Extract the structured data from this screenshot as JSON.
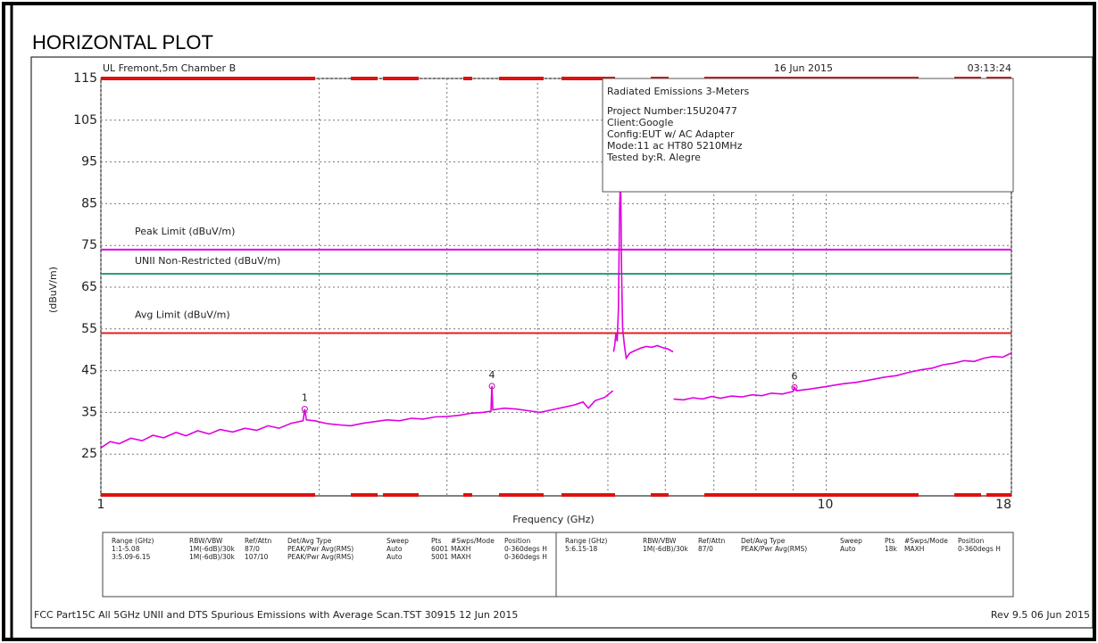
{
  "chart_data": {
    "type": "line",
    "title": "HORIZONTAL PLOT",
    "site": "UL Fremont,5m Chamber B",
    "date": "16 Jun 2015",
    "time": "03:13:24",
    "x_label": "Frequency (GHz)",
    "y_label": "(dBuV/m)",
    "x_scale": "log",
    "xlim": [
      1,
      18
    ],
    "xticks": [
      1,
      10,
      18
    ],
    "x_grid_lines": [
      2,
      3,
      4,
      5,
      6,
      7,
      8,
      9
    ],
    "ylim": [
      15,
      115
    ],
    "yticks": [
      25,
      35,
      45,
      55,
      65,
      75,
      85,
      95,
      105,
      115
    ],
    "grid": true,
    "info_box": {
      "title": "Radiated Emissions 3-Meters",
      "lines": [
        "Project Number:15U20477",
        "Client:Google",
        "Config:EUT w/ AC Adapter",
        "Mode:11 ac HT80 5210MHz",
        "Tested by:R. Alegre"
      ]
    },
    "limits": [
      {
        "name": "Peak Limit (dBuV/m)",
        "color": "#e000e0",
        "value": 74
      },
      {
        "name": "UNII Non-Restricted (dBuV/m)",
        "color": "#2e9e78",
        "value": 68.2
      },
      {
        "name": "Avg Limit (dBuV/m)",
        "color": "#e02020",
        "value": 54
      }
    ],
    "series": [
      {
        "color": "#e000e0",
        "x": [
          1.0,
          1.03,
          1.06,
          1.1,
          1.14,
          1.18,
          1.22,
          1.27,
          1.31,
          1.36,
          1.41,
          1.46,
          1.52,
          1.58,
          1.64,
          1.7,
          1.76,
          1.83,
          1.9,
          1.91,
          1.92,
          1.97,
          2.05,
          2.13,
          2.21,
          2.3,
          2.39,
          2.48,
          2.58,
          2.68,
          2.78,
          2.89,
          3.0,
          3.12,
          3.24,
          3.36,
          3.45,
          3.46,
          3.47,
          3.6,
          3.74,
          3.88,
          4.03,
          4.18,
          4.34,
          4.5,
          4.62,
          4.7,
          4.8,
          4.95,
          5.08,
          null,
          5.09,
          5.11,
          5.13,
          5.15,
          5.17,
          5.19,
          5.2,
          5.21,
          5.22,
          5.24,
          5.27,
          5.3,
          5.36,
          5.45,
          5.55,
          5.65,
          5.75,
          5.85,
          5.95,
          6.05,
          6.15,
          null,
          6.16,
          6.35,
          6.55,
          6.75,
          6.95,
          7.15,
          7.4,
          7.65,
          7.9,
          8.15,
          8.4,
          8.7,
          9.0,
          9.04,
          9.1,
          9.5,
          10.0,
          10.5,
          11.0,
          11.5,
          12.0,
          12.5,
          13.0,
          13.5,
          14.0,
          14.5,
          15.0,
          15.5,
          16.0,
          16.5,
          17.0,
          17.5,
          18.0
        ],
        "values": [
          26.5,
          28,
          27.5,
          28.8,
          28.2,
          29.5,
          28.9,
          30.2,
          29.4,
          30.6,
          29.8,
          30.9,
          30.3,
          31.2,
          30.7,
          31.8,
          31.2,
          32.4,
          33.0,
          35.8,
          33.2,
          33.0,
          32.3,
          32.0,
          31.8,
          32.4,
          32.8,
          33.2,
          33.0,
          33.6,
          33.4,
          33.9,
          34.0,
          34.3,
          34.8,
          35.0,
          35.3,
          41.3,
          35.6,
          36.0,
          35.8,
          35.4,
          35.0,
          35.6,
          36.2,
          36.8,
          37.5,
          36.0,
          37.8,
          38.6,
          40.2,
          null,
          49.5,
          51,
          54,
          52,
          60,
          84,
          89,
          87,
          70,
          55,
          51,
          48,
          49.2,
          49.8,
          50.4,
          50.8,
          50.6,
          51,
          50.5,
          50.2,
          49.5,
          null,
          38.2,
          38.0,
          38.5,
          38.2,
          38.8,
          38.4,
          38.9,
          38.7,
          39.2,
          39.0,
          39.6,
          39.4,
          40.0,
          41.0,
          40.2,
          40.6,
          41.2,
          41.8,
          42.2,
          42.8,
          43.4,
          43.8,
          44.6,
          45.2,
          45.6,
          46.4,
          46.8,
          47.4,
          47.2,
          48.0,
          48.4,
          48.2,
          49.2
        ]
      }
    ],
    "markers": {
      "labels": [
        "1",
        "4",
        "6"
      ],
      "x": [
        1.91,
        3.46,
        9.04
      ],
      "values": [
        35.8,
        41.3,
        41.0
      ]
    }
  },
  "table": {
    "headers": [
      "Range (GHz)",
      "RBW/VBW",
      "Ref/Attn",
      "Det/Avg Type",
      "Sweep",
      "Pts",
      "#Swps/Mode",
      "Position"
    ],
    "left_rows": [
      [
        "1:1-5.08",
        "1M(-6dB)/30k",
        "87/0",
        "PEAK/Pwr Avg(RMS)",
        "Auto",
        "6001",
        "MAXH",
        "0-360degs H"
      ],
      [
        "3:5.09-6.15",
        "1M(-6dB)/30k",
        "107/10",
        "PEAK/Pwr Avg(RMS)",
        "Auto",
        "5001",
        "MAXH",
        "0-360degs H"
      ]
    ],
    "right_rows": [
      [
        "5:6.15-18",
        "1M(-6dB)/30k",
        "87/0",
        "PEAK/Pwr Avg(RMS)",
        "Auto",
        "18k",
        "MAXH",
        "0-360degs H"
      ]
    ]
  },
  "footer": {
    "left": "FCC Part15C All 5GHz UNII and DTS Spurious Emissions with Average Scan.TST 30915 12 Jun 2015",
    "right": "Rev 9.5 06 Jun 2015"
  }
}
